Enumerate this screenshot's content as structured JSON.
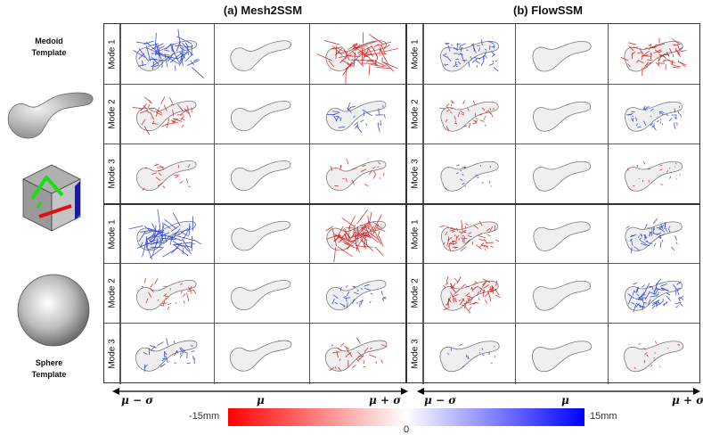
{
  "panels": [
    {
      "id": "a",
      "title": "(a) Mesh2SSM"
    },
    {
      "id": "b",
      "title": "(b) FlowSSM"
    }
  ],
  "row_labels": [
    "Mode 1",
    "Mode 2",
    "Mode 3",
    "Mode 1",
    "Mode 2",
    "Mode 3"
  ],
  "templates": {
    "medoid_label": "Medoid\nTemplate",
    "sphere_label": "Sphere\nTemplate"
  },
  "axis_labels": {
    "minus": "μ − σ",
    "mean": "μ",
    "plus": "μ + σ"
  },
  "colorbar": {
    "min_label": "-15mm",
    "zero_label": "0",
    "max_label": "15mm",
    "colors": {
      "negative": "#ff0000",
      "zero": "#ffffff",
      "positive": "#0000ff"
    }
  },
  "colors": {
    "grid_line": "#555555",
    "shape_fill": "#eeeeee"
  },
  "icons": [
    "orientation-cube-icon",
    "sphere-template-icon",
    "medoid-shape-icon"
  ]
}
